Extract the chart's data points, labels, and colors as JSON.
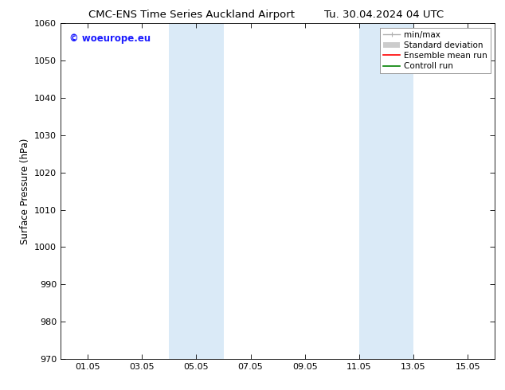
{
  "title_left": "CMC-ENS Time Series Auckland Airport",
  "title_right": "Tu. 30.04.2024 04 UTC",
  "ylabel": "Surface Pressure (hPa)",
  "ylim": [
    970,
    1060
  ],
  "yticks": [
    970,
    980,
    990,
    1000,
    1010,
    1020,
    1030,
    1040,
    1050,
    1060
  ],
  "xtick_labels": [
    "01.05",
    "03.05",
    "05.05",
    "07.05",
    "09.05",
    "11.05",
    "13.05",
    "15.05"
  ],
  "xtick_positions": [
    1,
    3,
    5,
    7,
    9,
    11,
    13,
    15
  ],
  "xlim": [
    0.0,
    16.0
  ],
  "shaded_regions": [
    {
      "x_start": 4.0,
      "x_end": 6.0,
      "color": "#daeaf7"
    },
    {
      "x_start": 11.0,
      "x_end": 13.0,
      "color": "#daeaf7"
    }
  ],
  "legend_entries": [
    {
      "label": "min/max",
      "color": "#b0b0b0",
      "lw": 1.0,
      "type": "minmax"
    },
    {
      "label": "Standard deviation",
      "color": "#cccccc",
      "lw": 6,
      "type": "patch"
    },
    {
      "label": "Ensemble mean run",
      "color": "red",
      "lw": 1.2,
      "type": "line"
    },
    {
      "label": "Controll run",
      "color": "green",
      "lw": 1.2,
      "type": "line"
    }
  ],
  "watermark_text": "© woeurope.eu",
  "watermark_color": "#1a1aff",
  "background_color": "#ffffff",
  "title_fontsize": 9.5,
  "axis_label_fontsize": 8.5,
  "tick_fontsize": 8,
  "legend_fontsize": 7.5
}
